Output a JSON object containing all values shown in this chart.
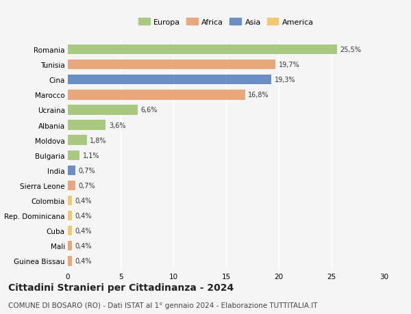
{
  "countries": [
    "Romania",
    "Tunisia",
    "Cina",
    "Marocco",
    "Ucraina",
    "Albania",
    "Moldova",
    "Bulgaria",
    "India",
    "Sierra Leone",
    "Colombia",
    "Rep. Dominicana",
    "Cuba",
    "Mali",
    "Guinea Bissau"
  ],
  "values": [
    25.5,
    19.7,
    19.3,
    16.8,
    6.6,
    3.6,
    1.8,
    1.1,
    0.7,
    0.7,
    0.4,
    0.4,
    0.4,
    0.4,
    0.4
  ],
  "labels": [
    "25,5%",
    "19,7%",
    "19,3%",
    "16,8%",
    "6,6%",
    "3,6%",
    "1,8%",
    "1,1%",
    "0,7%",
    "0,7%",
    "0,4%",
    "0,4%",
    "0,4%",
    "0,4%",
    "0,4%"
  ],
  "continents": [
    "Europa",
    "Africa",
    "Asia",
    "Africa",
    "Europa",
    "Europa",
    "Europa",
    "Europa",
    "Asia",
    "Africa",
    "America",
    "America",
    "America",
    "Africa",
    "Africa"
  ],
  "continent_colors": {
    "Europa": "#a8c97f",
    "Africa": "#e8a87c",
    "Asia": "#6b8fc4",
    "America": "#f0c96e"
  },
  "legend_order": [
    "Europa",
    "Africa",
    "Asia",
    "America"
  ],
  "legend_colors": [
    "#a8c97f",
    "#e8a87c",
    "#6b8fc4",
    "#f0c96e"
  ],
  "xlim": [
    0,
    30
  ],
  "xticks": [
    0,
    5,
    10,
    15,
    20,
    25,
    30
  ],
  "background_color": "#f5f5f5",
  "grid_color": "#ffffff",
  "title": "Cittadini Stranieri per Cittadinanza - 2024",
  "subtitle": "COMUNE DI BOSARO (RO) - Dati ISTAT al 1° gennaio 2024 - Elaborazione TUTTITALIA.IT",
  "title_fontsize": 10,
  "subtitle_fontsize": 7.5,
  "bar_height": 0.65
}
